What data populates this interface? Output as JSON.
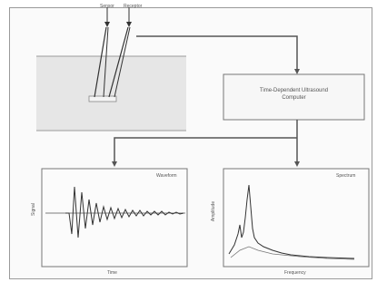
{
  "labels": {
    "sensor1": "Sensor",
    "sensor2": "Receptor",
    "processor_line1": "Time-Dependent Ultrasound",
    "processor_line2": "Computer",
    "waveform_title": "Waveform",
    "waveform_ylabel": "Signal",
    "waveform_xlabel": "Time",
    "spectrum_title": "Spectrum",
    "spectrum_ylabel": "Amplitude",
    "spectrum_xlabel": "Frequency"
  }
}
